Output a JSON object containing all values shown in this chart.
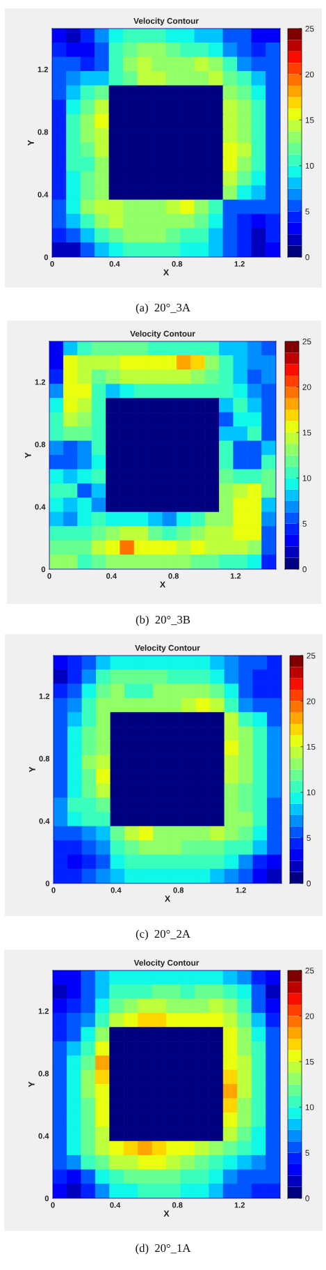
{
  "chart_data": [
    {
      "type": "heatmap",
      "title": "Velocity Contour",
      "xlabel": "X",
      "ylabel": "Y",
      "xlim": [
        0,
        1.46
      ],
      "ylim": [
        0,
        1.46
      ],
      "xticks": [
        0,
        0.4,
        0.8,
        1.2
      ],
      "yticks": [
        0,
        0.4,
        0.8,
        1.2
      ],
      "clim": [
        0,
        25
      ],
      "cticks": [
        0,
        5,
        10,
        15,
        20,
        25
      ],
      "annotations": [
        "(a)  20°_3A"
      ],
      "cells": [
        [
          3,
          2,
          4,
          7,
          9,
          10,
          10,
          10,
          9,
          9,
          8,
          8,
          6,
          5,
          3,
          3
        ],
        [
          4,
          3,
          3,
          6,
          10,
          12,
          13,
          13,
          12,
          11,
          10,
          9,
          7,
          5,
          4,
          5
        ],
        [
          5,
          5,
          4,
          5,
          10,
          13,
          14,
          13,
          13,
          13,
          14,
          13,
          10,
          7,
          6,
          5
        ],
        [
          5,
          7,
          8,
          8,
          10,
          12,
          14,
          14,
          13,
          13,
          13,
          14,
          12,
          10,
          8,
          6
        ],
        [
          5,
          8,
          10,
          12,
          0,
          0,
          0,
          0,
          0,
          0,
          0,
          0,
          13,
          12,
          9,
          6
        ],
        [
          4,
          9,
          12,
          14,
          0,
          0,
          0,
          0,
          0,
          0,
          0,
          0,
          14,
          13,
          10,
          6
        ],
        [
          4,
          10,
          13,
          15,
          0,
          0,
          0,
          0,
          0,
          0,
          0,
          0,
          14,
          13,
          11,
          6
        ],
        [
          4,
          10,
          13,
          14,
          0,
          0,
          0,
          0,
          0,
          0,
          0,
          0,
          14,
          13,
          11,
          6
        ],
        [
          4,
          10,
          12,
          14,
          0,
          0,
          0,
          0,
          0,
          0,
          0,
          0,
          15,
          14,
          11,
          5
        ],
        [
          4,
          10,
          11,
          13,
          0,
          0,
          0,
          0,
          0,
          0,
          0,
          0,
          15,
          13,
          10,
          5
        ],
        [
          4,
          9,
          12,
          13,
          0,
          0,
          0,
          0,
          0,
          0,
          0,
          0,
          14,
          12,
          9,
          5
        ],
        [
          4,
          9,
          12,
          13,
          0,
          0,
          0,
          0,
          0,
          0,
          0,
          0,
          13,
          9,
          8,
          5
        ],
        [
          5,
          9,
          13,
          14,
          14,
          13,
          13,
          13,
          14,
          15,
          13,
          10,
          6,
          5,
          5,
          5
        ],
        [
          5,
          8,
          11,
          13,
          14,
          13,
          13,
          13,
          13,
          13,
          12,
          9,
          6,
          4,
          3,
          4
        ],
        [
          4,
          5,
          8,
          11,
          12,
          13,
          13,
          13,
          12,
          11,
          10,
          8,
          6,
          4,
          2,
          4
        ],
        [
          2,
          2,
          5,
          8,
          9,
          10,
          10,
          10,
          10,
          9,
          9,
          8,
          6,
          4,
          2,
          3
        ]
      ]
    },
    {
      "type": "heatmap",
      "title": "Velocity Contour",
      "xlabel": "X",
      "ylabel": "Y",
      "xlim": [
        0,
        1.46
      ],
      "ylim": [
        0,
        1.46
      ],
      "xticks": [
        0,
        0.4,
        0.8,
        1.2
      ],
      "yticks": [
        0,
        0.4,
        0.8,
        1.2
      ],
      "clim": [
        0,
        25
      ],
      "cticks": [
        0,
        5,
        10,
        15,
        20,
        25
      ],
      "annotations": [
        "(b)  20°_3B"
      ],
      "cells": [
        [
          3,
          8,
          11,
          12,
          12,
          12,
          12,
          11,
          11,
          11,
          11,
          10,
          8,
          8,
          7,
          6
        ],
        [
          3,
          16,
          14,
          14,
          14,
          15,
          16,
          16,
          16,
          18,
          17,
          13,
          10,
          8,
          7,
          7
        ],
        [
          4,
          16,
          14,
          12,
          13,
          14,
          14,
          14,
          14,
          14,
          13,
          12,
          10,
          8,
          6,
          7
        ],
        [
          7,
          16,
          15,
          10,
          8,
          9,
          10,
          10,
          10,
          10,
          10,
          10,
          11,
          9,
          7,
          6
        ],
        [
          9,
          16,
          14,
          10,
          0,
          0,
          0,
          0,
          0,
          0,
          0,
          0,
          8,
          10,
          8,
          6
        ],
        [
          11,
          14,
          13,
          10,
          0,
          0,
          0,
          0,
          0,
          0,
          0,
          0,
          5,
          9,
          9,
          6
        ],
        [
          11,
          12,
          12,
          11,
          0,
          0,
          0,
          0,
          0,
          0,
          0,
          0,
          8,
          8,
          10,
          6
        ],
        [
          7,
          6,
          7,
          10,
          0,
          0,
          0,
          0,
          0,
          0,
          0,
          0,
          10,
          5,
          6,
          8
        ],
        [
          6,
          5,
          7,
          9,
          0,
          0,
          0,
          0,
          0,
          0,
          0,
          0,
          11,
          6,
          6,
          10
        ],
        [
          9,
          8,
          9,
          10,
          0,
          0,
          0,
          0,
          0,
          0,
          0,
          0,
          12,
          10,
          11,
          12
        ],
        [
          11,
          10,
          6,
          8,
          0,
          0,
          0,
          0,
          0,
          0,
          0,
          0,
          13,
          14,
          15,
          12
        ],
        [
          9,
          8,
          9,
          7,
          0,
          0,
          0,
          0,
          0,
          0,
          0,
          0,
          13,
          15,
          16,
          8
        ],
        [
          8,
          7,
          9,
          10,
          9,
          9,
          9,
          8,
          7,
          9,
          11,
          13,
          13,
          15,
          16,
          7
        ],
        [
          11,
          11,
          10,
          12,
          13,
          14,
          14,
          12,
          11,
          12,
          13,
          14,
          14,
          15,
          15,
          6
        ],
        [
          12,
          12,
          12,
          14,
          15,
          19,
          16,
          16,
          15,
          14,
          15,
          14,
          14,
          14,
          13,
          5
        ],
        [
          13,
          13,
          11,
          12,
          13,
          13,
          13,
          13,
          13,
          13,
          12,
          12,
          11,
          10,
          9,
          4
        ]
      ]
    },
    {
      "type": "heatmap",
      "title": "Velocity Contour",
      "xlabel": "X",
      "ylabel": "Y",
      "xlim": [
        0,
        1.46
      ],
      "ylim": [
        0,
        1.46
      ],
      "xticks": [
        0,
        0.4,
        0.8,
        1.2
      ],
      "yticks": [
        0,
        0.4,
        0.8,
        1.2
      ],
      "clim": [
        0,
        25
      ],
      "cticks": [
        0,
        5,
        10,
        15,
        20,
        25
      ],
      "annotations": [
        "(c)  20°_2A"
      ],
      "cells": [
        [
          3,
          4,
          6,
          8,
          9,
          9,
          9,
          9,
          9,
          9,
          9,
          8,
          7,
          5,
          5,
          4
        ],
        [
          2,
          4,
          7,
          10,
          12,
          12,
          12,
          12,
          11,
          11,
          10,
          9,
          7,
          5,
          4,
          4
        ],
        [
          4,
          5,
          9,
          12,
          13,
          11,
          11,
          13,
          13,
          13,
          13,
          12,
          9,
          6,
          4,
          4
        ],
        [
          5,
          7,
          10,
          13,
          13,
          13,
          13,
          13,
          13,
          14,
          15,
          14,
          10,
          7,
          6,
          5
        ],
        [
          5,
          8,
          11,
          13,
          0,
          0,
          0,
          0,
          0,
          0,
          0,
          0,
          14,
          11,
          9,
          6
        ],
        [
          6,
          9,
          12,
          13,
          0,
          0,
          0,
          0,
          0,
          0,
          0,
          0,
          14,
          13,
          10,
          7
        ],
        [
          6,
          9,
          12,
          13,
          0,
          0,
          0,
          0,
          0,
          0,
          0,
          0,
          15,
          13,
          10,
          7
        ],
        [
          6,
          9,
          13,
          14,
          0,
          0,
          0,
          0,
          0,
          0,
          0,
          0,
          14,
          13,
          10,
          7
        ],
        [
          6,
          9,
          12,
          15,
          0,
          0,
          0,
          0,
          0,
          0,
          0,
          0,
          14,
          13,
          10,
          7
        ],
        [
          6,
          9,
          12,
          14,
          0,
          0,
          0,
          0,
          0,
          0,
          0,
          0,
          13,
          12,
          10,
          7
        ],
        [
          7,
          10,
          11,
          12,
          0,
          0,
          0,
          0,
          0,
          0,
          0,
          0,
          13,
          12,
          10,
          6
        ],
        [
          7,
          9,
          10,
          11,
          0,
          0,
          0,
          0,
          0,
          0,
          0,
          0,
          13,
          13,
          10,
          6
        ],
        [
          5,
          6,
          7,
          8,
          12,
          14,
          15,
          13,
          13,
          13,
          13,
          14,
          13,
          12,
          9,
          6
        ],
        [
          4,
          4,
          5,
          7,
          10,
          12,
          13,
          13,
          13,
          12,
          12,
          12,
          11,
          10,
          8,
          5
        ],
        [
          4,
          3,
          4,
          6,
          9,
          10,
          11,
          11,
          11,
          11,
          10,
          10,
          9,
          7,
          4,
          3
        ],
        [
          4,
          4,
          5,
          7,
          8,
          9,
          9,
          9,
          9,
          9,
          9,
          8,
          7,
          5,
          3,
          2
        ]
      ]
    },
    {
      "type": "heatmap",
      "title": "Velocity Contour",
      "xlabel": "X",
      "ylabel": "Y",
      "xlim": [
        0,
        1.46
      ],
      "ylim": [
        0,
        1.46
      ],
      "xticks": [
        0,
        0.4,
        0.8,
        1.2
      ],
      "yticks": [
        0,
        0.4,
        0.8,
        1.2
      ],
      "clim": [
        0,
        25
      ],
      "cticks": [
        0,
        5,
        10,
        15,
        20,
        25
      ],
      "annotations": [
        "(d)  20°_1A"
      ],
      "cells": [
        [
          3,
          3,
          5,
          8,
          9,
          9,
          9,
          9,
          9,
          9,
          9,
          9,
          8,
          7,
          4,
          3
        ],
        [
          2,
          3,
          5,
          8,
          10,
          11,
          11,
          12,
          12,
          11,
          12,
          12,
          11,
          9,
          5,
          2
        ],
        [
          3,
          4,
          6,
          9,
          12,
          13,
          14,
          14,
          13,
          13,
          13,
          14,
          13,
          11,
          6,
          3
        ],
        [
          4,
          5,
          7,
          10,
          14,
          16,
          17,
          17,
          16,
          16,
          15,
          15,
          14,
          12,
          8,
          4
        ],
        [
          4,
          6,
          9,
          13,
          0,
          0,
          0,
          0,
          0,
          0,
          0,
          0,
          15,
          13,
          9,
          5
        ],
        [
          5,
          8,
          11,
          16,
          0,
          0,
          0,
          0,
          0,
          0,
          0,
          0,
          15,
          13,
          10,
          5
        ],
        [
          5,
          9,
          12,
          18,
          0,
          0,
          0,
          0,
          0,
          0,
          0,
          0,
          16,
          14,
          10,
          6
        ],
        [
          5,
          9,
          13,
          17,
          0,
          0,
          0,
          0,
          0,
          0,
          0,
          0,
          17,
          14,
          10,
          6
        ],
        [
          5,
          9,
          13,
          16,
          0,
          0,
          0,
          0,
          0,
          0,
          0,
          0,
          18,
          14,
          10,
          6
        ],
        [
          5,
          9,
          12,
          15,
          0,
          0,
          0,
          0,
          0,
          0,
          0,
          0,
          17,
          13,
          10,
          6
        ],
        [
          5,
          9,
          12,
          15,
          0,
          0,
          0,
          0,
          0,
          0,
          0,
          0,
          15,
          13,
          10,
          6
        ],
        [
          5,
          9,
          12,
          14,
          0,
          0,
          0,
          0,
          0,
          0,
          0,
          0,
          14,
          12,
          9,
          6
        ],
        [
          6,
          9,
          12,
          14,
          15,
          17,
          18,
          17,
          16,
          15,
          14,
          13,
          12,
          11,
          9,
          6
        ],
        [
          5,
          7,
          10,
          12,
          14,
          14,
          15,
          15,
          14,
          13,
          12,
          11,
          9,
          8,
          7,
          6
        ],
        [
          4,
          3,
          6,
          9,
          11,
          12,
          12,
          12,
          12,
          11,
          10,
          9,
          7,
          5,
          6,
          6
        ],
        [
          3,
          2,
          4,
          7,
          9,
          9,
          10,
          10,
          10,
          9,
          9,
          8,
          6,
          5,
          4,
          4
        ]
      ]
    }
  ]
}
